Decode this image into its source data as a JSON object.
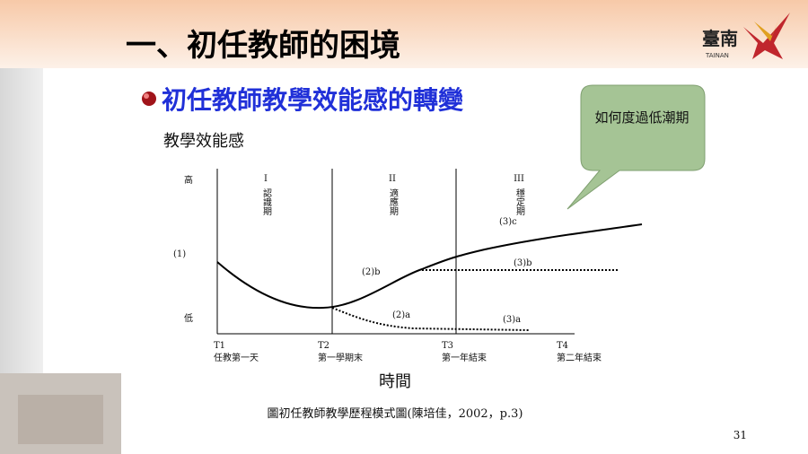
{
  "header": {
    "title": "一、初任教師的困境",
    "logo_text": "臺南",
    "logo_sub": "TAINAN"
  },
  "subtitle": "初任教師教學效能感的轉變",
  "callout": "如何度過低潮期",
  "diagram": {
    "y_title": "教學效能感",
    "y_labels": [
      "高",
      "(1)",
      "低"
    ],
    "phases": [
      {
        "numeral": "I",
        "name": "認識期"
      },
      {
        "numeral": "II",
        "name": "適應期"
      },
      {
        "numeral": "III",
        "name": "穩定期"
      }
    ],
    "curve_labels": [
      "(2)b",
      "(2)a",
      "(3)c",
      "(3)b",
      "(3)a"
    ],
    "x_ticks": [
      {
        "t": "T1",
        "label": "任教第一天"
      },
      {
        "t": "T2",
        "label": "第一學期末"
      },
      {
        "t": "T3",
        "label": "第一年結束"
      },
      {
        "t": "T4",
        "label": "第二年結束"
      }
    ],
    "x_title": "時間",
    "caption": "圖初任教師教學歷程模式圖(陳培佳，2002，p.3)"
  },
  "page_number": "31"
}
